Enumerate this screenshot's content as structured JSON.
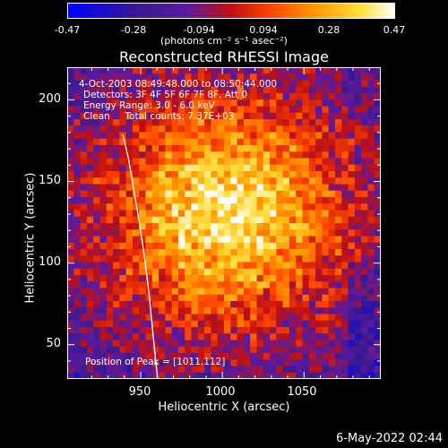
{
  "colorbar": {
    "ticks": [
      "-0.47",
      "-0.28",
      "-0.094",
      "0.094",
      "0.28",
      "0.47"
    ],
    "unit_label": "(photons cm⁻² s⁻¹ asec⁻²)"
  },
  "chart_data": {
    "type": "heatmap",
    "title": "Reconstructed RHESSI Image",
    "xlabel": "Heliocentric X (arcsec)",
    "ylabel": "Heliocentric Y (arcsec)",
    "xlim": [
      905,
      1097
    ],
    "ylim": [
      29,
      220
    ],
    "x_ticks": [
      950,
      1000,
      1050
    ],
    "y_ticks": [
      50,
      100,
      150,
      200
    ],
    "value_range": [
      -0.47,
      0.47
    ],
    "colormap": "blue-purple-red-yellow-white",
    "peak": [
      1011,
      112
    ],
    "annotations": {
      "time": "4-Oct-2003 08:49:48.000 to 08:50:44.000",
      "detectors": "Detectors: 3F 4F 5F 6F 7F 8F, Att 0",
      "energy": "Energy Range: 3.0 - 6.0 keV",
      "clean": "Clean     Total counts: 7.37E+03",
      "peak": "Position of Peak = [1011,112]"
    }
  },
  "footer": {
    "date": "6-May-2022 02:44"
  }
}
